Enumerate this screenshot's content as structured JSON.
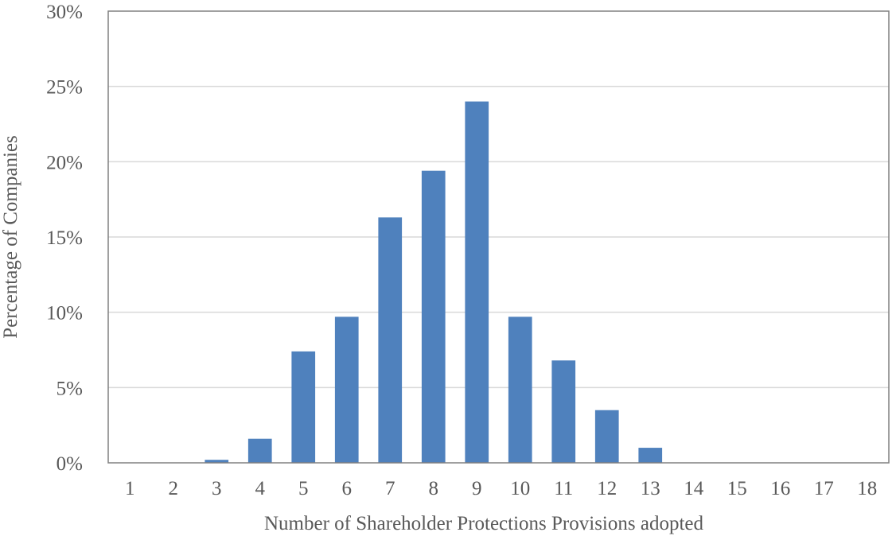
{
  "chart_data": {
    "type": "bar",
    "title": "",
    "xlabel": "Number of Shareholder Protections Provisions adopted",
    "ylabel": "Percentage of Companies",
    "categories": [
      "1",
      "2",
      "3",
      "4",
      "5",
      "6",
      "7",
      "8",
      "9",
      "10",
      "11",
      "12",
      "13",
      "14",
      "15",
      "16",
      "17",
      "18"
    ],
    "values": [
      0,
      0,
      0.2,
      1.6,
      7.4,
      9.7,
      16.3,
      19.4,
      24.0,
      9.7,
      6.8,
      3.5,
      1.0,
      0,
      0,
      0,
      0,
      0
    ],
    "ylim": [
      0,
      30
    ],
    "yticks": [
      0,
      5,
      10,
      15,
      20,
      25,
      30
    ],
    "ytick_labels": [
      "0%",
      "5%",
      "10%",
      "15%",
      "20%",
      "25%",
      "30%"
    ],
    "grid": true,
    "legend": "none",
    "bar_color": "#4f81bd",
    "grid_color": "#d9d9d9",
    "frame_color": "#808080"
  }
}
